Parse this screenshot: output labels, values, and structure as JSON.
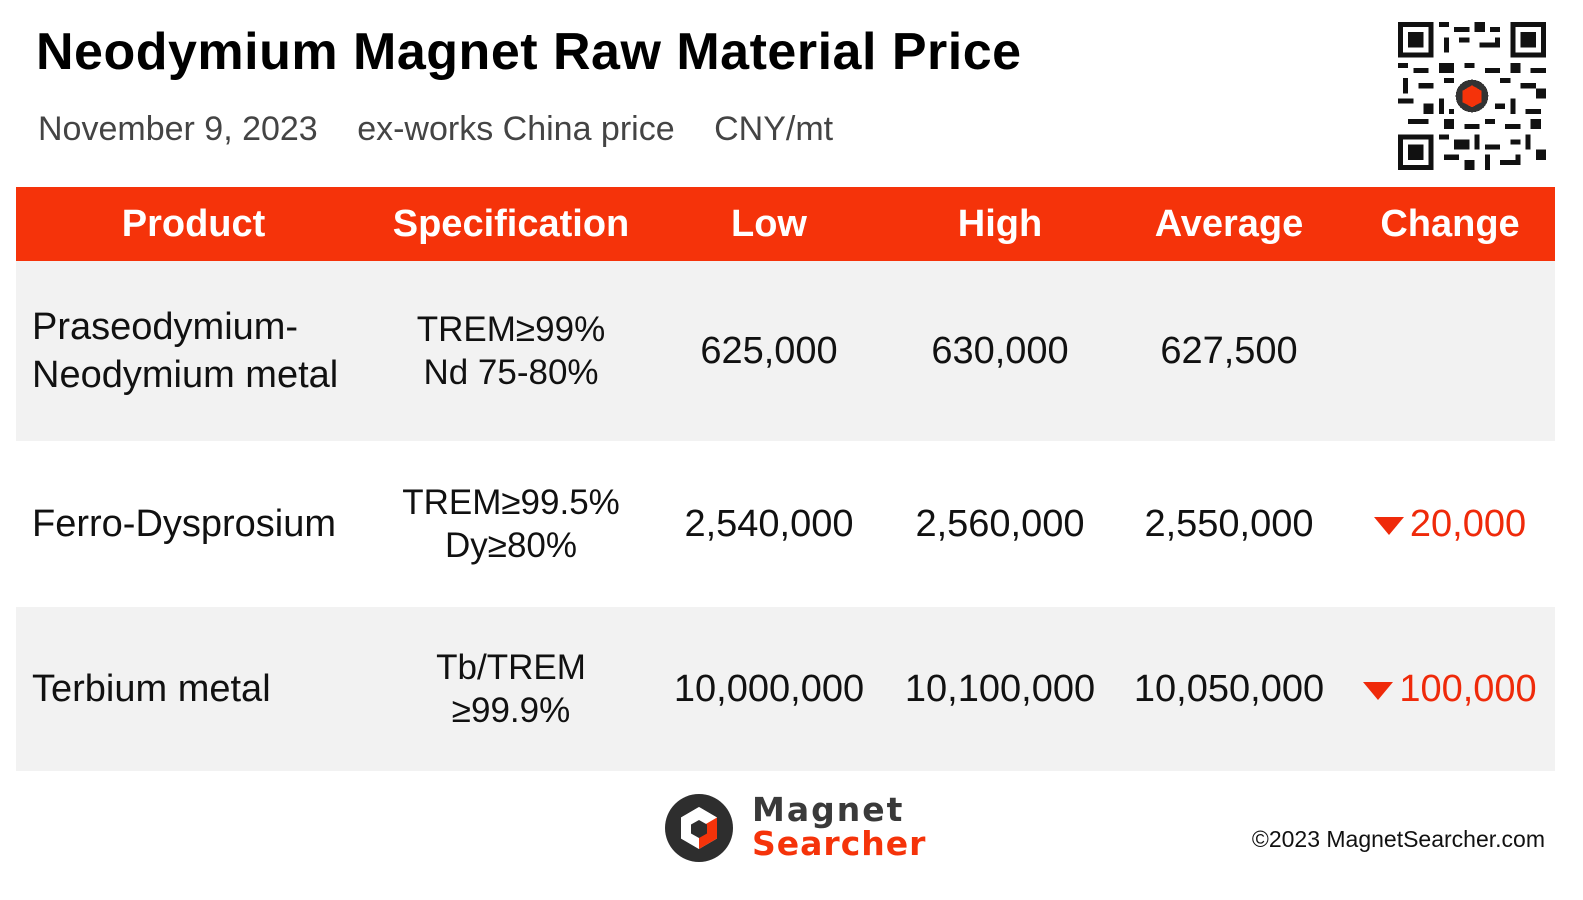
{
  "header": {
    "title": "Neodymium Magnet Raw Material Price",
    "date": "November 9, 2023",
    "basis": "ex-works China price",
    "unit": "CNY/mt"
  },
  "table": {
    "columns": [
      "Product",
      "Specification",
      "Low",
      "High",
      "Average",
      "Change"
    ],
    "rows": [
      {
        "product_line1": "Praseodymium-",
        "product_line2": "Neodymium metal",
        "spec_line1": "TREM≥99%",
        "spec_line2": "Nd 75-80%",
        "low": "625,000",
        "high": "630,000",
        "average": "627,500",
        "change": "",
        "change_direction": "none"
      },
      {
        "product_line1": "Ferro-Dysprosium",
        "product_line2": "",
        "spec_line1": "TREM≥99.5%",
        "spec_line2": "Dy≥80%",
        "low": "2,540,000",
        "high": "2,560,000",
        "average": "2,550,000",
        "change": "20,000",
        "change_direction": "down"
      },
      {
        "product_line1": "Terbium metal",
        "product_line2": "",
        "spec_line1": "Tb/TREM",
        "spec_line2": "≥99.9%",
        "low": "10,000,000",
        "high": "10,100,000",
        "average": "10,050,000",
        "change": "100,000",
        "change_direction": "down"
      }
    ]
  },
  "logo": {
    "line1": "Magnet",
    "line2": "Searcher"
  },
  "footer": {
    "copyright": "©2023 MagnetSearcher.com"
  },
  "colors": {
    "accent": "#f5330a",
    "down": "#ef2a0a",
    "row_shade": "#f2f2f2"
  },
  "icons": {
    "qr": "qr-code-icon",
    "change_down": "triangle-down-icon",
    "logo": "magnet-searcher-logo-icon"
  }
}
